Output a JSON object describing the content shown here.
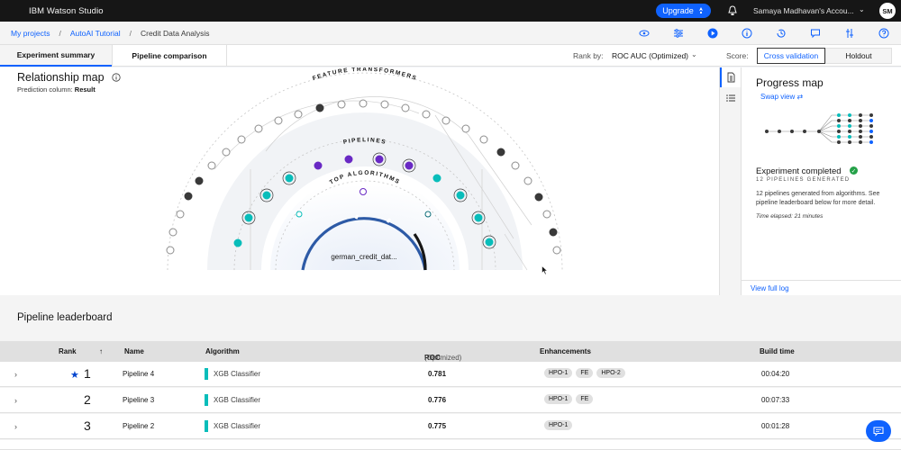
{
  "topbar": {
    "brand": "IBM Watson Studio",
    "upgrade_label": "Upgrade",
    "account": "Samaya Madhavan's Accou...",
    "avatar_initials": "SM"
  },
  "breadcrumb": {
    "items": [
      "My projects",
      "AutoAI Tutorial",
      "Credit Data Analysis"
    ],
    "separator": "/"
  },
  "tabs": [
    {
      "label": "Experiment summary",
      "active": true
    },
    {
      "label": "Pipeline comparison",
      "active": false
    }
  ],
  "rank_by": {
    "label": "Rank by:",
    "value": "ROC AUC (Optimized)"
  },
  "score": {
    "label": "Score:",
    "options": [
      "Cross validation",
      "Holdout"
    ],
    "selected": "Cross validation"
  },
  "relationship_map": {
    "title": "Relationship map",
    "prediction_label": "Prediction column:",
    "prediction_value": "Result",
    "ring_labels": [
      "FEATURE TRANSFORMERS",
      "PIPELINES",
      "TOP ALGORITHMS"
    ],
    "center_label": "german_credit_dat..."
  },
  "progress_map": {
    "title": "Progress map",
    "swap_label": "Swap view",
    "status": "Experiment completed",
    "pipelines_generated": "12 PIPELINES GENERATED",
    "description": "12 pipelines generated from algorithms. See pipeline leaderboard below for more detail.",
    "elapsed": "Time elapsed: 21 minutes",
    "view_log": "View full log"
  },
  "leaderboard": {
    "title": "Pipeline leaderboard",
    "columns": {
      "rank": "Rank",
      "name": "Name",
      "algorithm": "Algorithm",
      "score": "ROC AUC",
      "score_suffix": "(Optimized)",
      "enhancements": "Enhancements",
      "build_time": "Build time"
    },
    "rows": [
      {
        "rank": "1",
        "name": "Pipeline 4",
        "algorithm": "XGB Classifier",
        "score": "0.781",
        "enhancements": [
          "HPO-1",
          "FE",
          "HPO-2"
        ],
        "build_time": "00:04:20"
      },
      {
        "rank": "2",
        "name": "Pipeline 3",
        "algorithm": "XGB Classifier",
        "score": "0.776",
        "enhancements": [
          "HPO-1",
          "FE"
        ],
        "build_time": "00:07:33"
      },
      {
        "rank": "3",
        "name": "Pipeline 2",
        "algorithm": "XGB Classifier",
        "score": "0.775",
        "enhancements": [
          "HPO-1"
        ],
        "build_time": "00:01:28"
      }
    ]
  },
  "colors": {
    "accent": "#0f62fe",
    "teal": "#08bdba",
    "purple": "#6929c4",
    "dark_node": "#393939"
  }
}
